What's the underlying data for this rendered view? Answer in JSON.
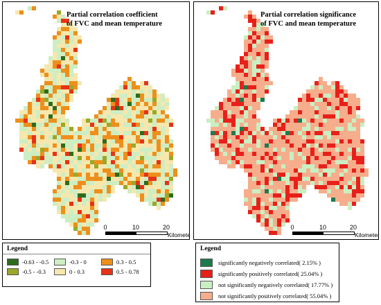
{
  "left_panel": {
    "title_line1": "Partial correlation coefficient",
    "title_line2": "of FVC and mean temperature",
    "scale": {
      "ticks": [
        "0",
        "10",
        "20"
      ],
      "unit": "Kilometers"
    },
    "legend": {
      "title": "Legend",
      "items": [
        {
          "label": "-0.63 - -0.5",
          "color": "#2e6b1e"
        },
        {
          "label": "-0.5 - -0.3",
          "color": "#9aa829"
        },
        {
          "label": "-0.3 - 0",
          "color": "#cdeec3"
        },
        {
          "label": "0 - 0.3",
          "color": "#f6e7ad"
        },
        {
          "label": "0.3 - 0.5",
          "color": "#ee8f1c"
        },
        {
          "label": "0.5 - 0.78",
          "color": "#e63318"
        }
      ]
    }
  },
  "right_panel": {
    "title_line1": "Partial correlation significance",
    "title_line2": "of FVC and mean temperature",
    "scale": {
      "ticks": [
        "0",
        "10",
        "20"
      ],
      "unit": "Kilometers"
    },
    "legend": {
      "title": "Legend",
      "items": [
        {
          "label": "significantly negatively correlated( 2.15% )",
          "color": "#1f7a4d",
          "share": 2.15
        },
        {
          "label": "significantly positively correlated( 25.04% )",
          "color": "#e8201a",
          "share": 25.04
        },
        {
          "label": "not significantly negatively correlated( 17.77% )",
          "color": "#c9efc2",
          "share": 17.77
        },
        {
          "label": "not significantly positively correlated( 55.04% )",
          "color": "#f6ad8c",
          "share": 55.04
        }
      ]
    }
  }
}
